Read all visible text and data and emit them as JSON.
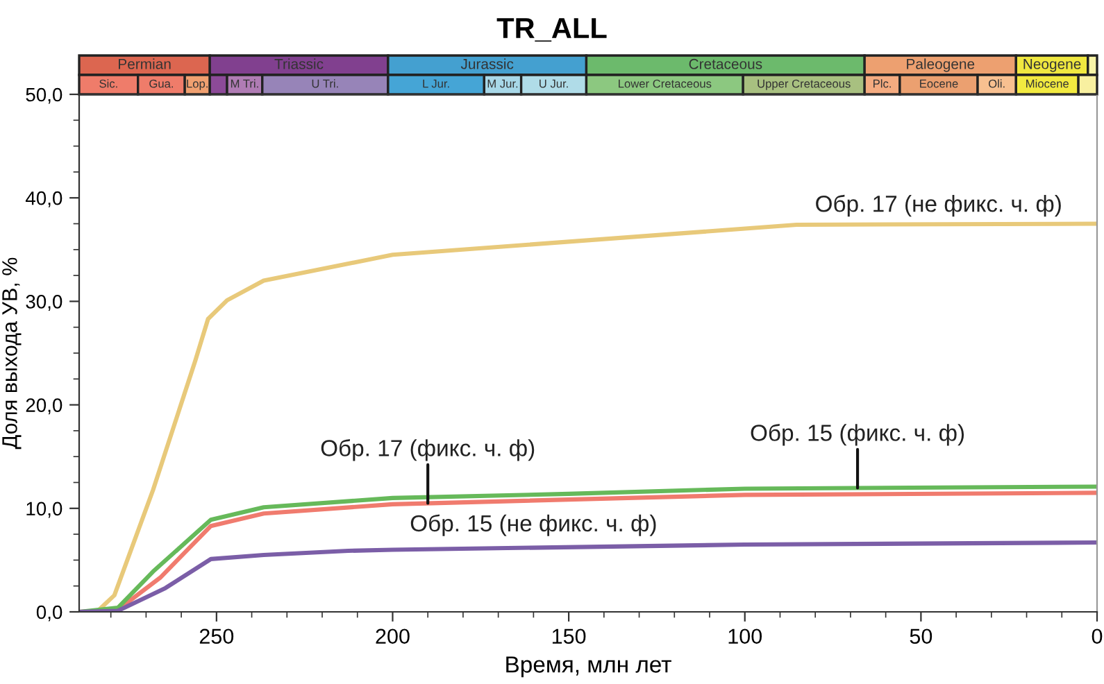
{
  "chart_data": {
    "type": "line",
    "title": "TR_ALL",
    "xlabel": "Время, млн лет",
    "ylabel": "Доля выхода УВ, %",
    "xlim": [
      289,
      0
    ],
    "xticks": [
      250,
      200,
      150,
      100,
      50,
      0
    ],
    "ylim": [
      0,
      50
    ],
    "yticks": [
      {
        "value": 0,
        "label": "0,0"
      },
      {
        "value": 10,
        "label": "10,0"
      },
      {
        "value": 20,
        "label": "20,0"
      },
      {
        "value": 30,
        "label": "30,0"
      },
      {
        "value": 40,
        "label": "40,0"
      },
      {
        "value": 50,
        "label": "50,0"
      }
    ],
    "grid": false,
    "legend": false,
    "marker": "none",
    "line_style": "solid",
    "series": [
      {
        "name": "Обр. 17 (не фикс. ч. ф)",
        "color": "#e8c97a",
        "x": [
          289,
          284,
          279,
          268,
          256,
          252.4,
          247,
          236.6,
          200,
          85.3,
          0
        ],
        "values": [
          0,
          0,
          1.6,
          11.8,
          24.3,
          28.3,
          30.1,
          32.0,
          34.5,
          37.4,
          37.5
        ]
      },
      {
        "name": "Обр. 17 (фикс. ч. ф)",
        "color": "#f07b6e",
        "x": [
          289,
          278,
          266,
          251.6,
          236.6,
          200,
          100,
          0
        ],
        "values": [
          0,
          0.2,
          3.3,
          8.3,
          9.5,
          10.4,
          11.3,
          11.5
        ]
      },
      {
        "name": "Обр. 15 (фикс. ч. ф)",
        "color": "#66b95a",
        "x": [
          289,
          278,
          268,
          251.6,
          236.6,
          200,
          150,
          100,
          0
        ],
        "values": [
          0,
          0.4,
          3.9,
          8.9,
          10.1,
          11.0,
          11.4,
          11.9,
          12.1
        ]
      },
      {
        "name": "Обр. 15 (не фикс. ч. ф)",
        "color": "#7b5ea7",
        "x": [
          289,
          278,
          264.5,
          251.6,
          236.6,
          212.6,
          200,
          100,
          0
        ],
        "values": [
          0,
          0.1,
          2.3,
          5.1,
          5.5,
          5.9,
          6.0,
          6.5,
          6.7
        ]
      }
    ],
    "annotations": [
      "Permian",
      "Triassic",
      "Jurassic",
      "Cretaceous",
      "Paleogene",
      "Neogene",
      "Sic.",
      "Gua.",
      "Lop.",
      "M Tri.",
      "U Tri.",
      "L Jur.",
      "M Jur.",
      "U Jur.",
      "Lower Cretaceous",
      "Upper Cretaceous",
      "Plc.",
      "Eocene",
      "Oli.",
      "Miocene"
    ]
  }
}
